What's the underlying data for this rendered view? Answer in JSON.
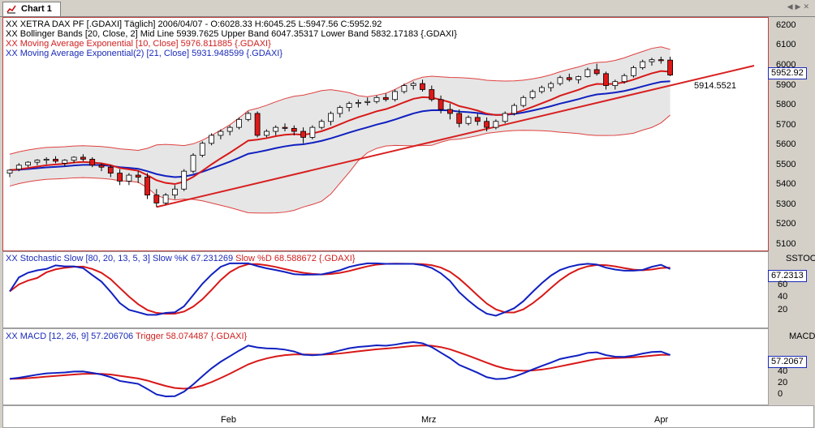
{
  "tab": {
    "label": "Chart 1"
  },
  "price_panel": {
    "title": "XETRA DAX PF [.GDAXI]  Täglich] 2006/04/07 - O:6028.33 H:6045.25 L:5947.56 C:5952.92",
    "bollinger": "Bollinger Bands [20, Close, 2] Mid Line 5939.7625 Upper Band 6047.35317 Lower Band 5832.17183 {.GDAXI}",
    "ema10": "Moving Average Exponential [10, Close] 5976.811885 {.GDAXI}",
    "ema21": "Moving Average Exponential(2) [21, Close] 5931.948599 {.GDAXI}",
    "prefix": "XX",
    "last_value": "5952.92",
    "trendline_value": "5914.5521",
    "y_ticks": [
      "6200",
      "6100",
      "6000",
      "5900",
      "5800",
      "5700",
      "5600",
      "5500",
      "5400",
      "5300",
      "5200",
      "5100"
    ]
  },
  "stoch_panel": {
    "prefix": "XX",
    "label_blue": "Stochastic Slow [80, 20, 13, 5, 3] Slow %K 67.231269",
    "label_red": "Slow %D 68.588672 {.GDAXI}",
    "name": "SSTOC",
    "value": "67.2313",
    "y_ticks": [
      "60",
      "40",
      "20"
    ]
  },
  "macd_panel": {
    "prefix": "XX",
    "label_blue": "MACD [12, 26, 9] 57.206706",
    "label_red": "Trigger 58.074487 {.GDAXI}",
    "name": "MACD",
    "value": "57.2067",
    "y_ticks": [
      "40",
      "20",
      "0"
    ]
  },
  "x_axis": {
    "labels": [
      "Feb",
      "Mrz",
      "Apr"
    ]
  },
  "colors": {
    "up": "#ffffff",
    "down": "#e01818",
    "ema10": "#d81818",
    "ema21": "#1020c0",
    "band": "#e6e6e6",
    "band_line": "#e04040",
    "trend": "#d82020"
  },
  "chart_data": {
    "type": "candlestick",
    "title": "XETRA DAX PF [.GDAXI]",
    "ylim": [
      5100,
      6220
    ],
    "candles": [
      [
        5460,
        5480,
        5440,
        5475
      ],
      [
        5480,
        5510,
        5470,
        5500
      ],
      [
        5500,
        5520,
        5490,
        5515
      ],
      [
        5515,
        5530,
        5500,
        5525
      ],
      [
        5525,
        5540,
        5505,
        5530
      ],
      [
        5530,
        5545,
        5510,
        5520
      ],
      [
        5510,
        5530,
        5495,
        5525
      ],
      [
        5525,
        5545,
        5510,
        5540
      ],
      [
        5540,
        5555,
        5520,
        5530
      ],
      [
        5530,
        5540,
        5490,
        5500
      ],
      [
        5500,
        5510,
        5470,
        5490
      ],
      [
        5490,
        5500,
        5440,
        5460
      ],
      [
        5460,
        5480,
        5400,
        5420
      ],
      [
        5420,
        5460,
        5400,
        5450
      ],
      [
        5450,
        5470,
        5410,
        5440
      ],
      [
        5440,
        5460,
        5330,
        5350
      ],
      [
        5350,
        5380,
        5290,
        5310
      ],
      [
        5310,
        5360,
        5300,
        5350
      ],
      [
        5350,
        5400,
        5330,
        5380
      ],
      [
        5380,
        5480,
        5370,
        5470
      ],
      [
        5470,
        5560,
        5460,
        5550
      ],
      [
        5550,
        5620,
        5540,
        5610
      ],
      [
        5610,
        5660,
        5600,
        5650
      ],
      [
        5650,
        5680,
        5630,
        5670
      ],
      [
        5670,
        5700,
        5650,
        5690
      ],
      [
        5690,
        5740,
        5680,
        5730
      ],
      [
        5730,
        5770,
        5720,
        5760
      ],
      [
        5760,
        5770,
        5640,
        5650
      ],
      [
        5650,
        5680,
        5640,
        5670
      ],
      [
        5670,
        5700,
        5650,
        5690
      ],
      [
        5690,
        5710,
        5670,
        5685
      ],
      [
        5685,
        5700,
        5650,
        5670
      ],
      [
        5670,
        5690,
        5610,
        5640
      ],
      [
        5640,
        5700,
        5630,
        5690
      ],
      [
        5690,
        5730,
        5680,
        5720
      ],
      [
        5720,
        5770,
        5700,
        5760
      ],
      [
        5760,
        5800,
        5740,
        5790
      ],
      [
        5790,
        5820,
        5770,
        5810
      ],
      [
        5810,
        5830,
        5790,
        5815
      ],
      [
        5815,
        5840,
        5800,
        5820
      ],
      [
        5820,
        5850,
        5810,
        5840
      ],
      [
        5840,
        5860,
        5820,
        5830
      ],
      [
        5830,
        5880,
        5820,
        5870
      ],
      [
        5870,
        5910,
        5860,
        5900
      ],
      [
        5900,
        5920,
        5880,
        5910
      ],
      [
        5910,
        5930,
        5870,
        5880
      ],
      [
        5880,
        5900,
        5820,
        5830
      ],
      [
        5830,
        5850,
        5760,
        5780
      ],
      [
        5780,
        5810,
        5730,
        5760
      ],
      [
        5760,
        5780,
        5690,
        5710
      ],
      [
        5710,
        5750,
        5700,
        5740
      ],
      [
        5740,
        5760,
        5700,
        5720
      ],
      [
        5720,
        5740,
        5670,
        5690
      ],
      [
        5690,
        5730,
        5680,
        5720
      ],
      [
        5720,
        5770,
        5710,
        5760
      ],
      [
        5760,
        5810,
        5750,
        5800
      ],
      [
        5800,
        5850,
        5790,
        5840
      ],
      [
        5840,
        5880,
        5830,
        5870
      ],
      [
        5870,
        5900,
        5860,
        5890
      ],
      [
        5890,
        5920,
        5870,
        5910
      ],
      [
        5910,
        5950,
        5900,
        5940
      ],
      [
        5940,
        5960,
        5920,
        5930
      ],
      [
        5930,
        5950,
        5910,
        5945
      ],
      [
        5945,
        5990,
        5940,
        5980
      ],
      [
        5980,
        6010,
        5950,
        5960
      ],
      [
        5960,
        5970,
        5880,
        5900
      ],
      [
        5900,
        5930,
        5880,
        5920
      ],
      [
        5920,
        5960,
        5910,
        5950
      ],
      [
        5950,
        6000,
        5940,
        5990
      ],
      [
        5990,
        6030,
        5980,
        6020
      ],
      [
        6020,
        6040,
        6000,
        6030
      ],
      [
        6030,
        6045,
        6010,
        6025
      ],
      [
        6028,
        6045,
        5948,
        5953
      ]
    ],
    "x_ticks": [
      "Feb",
      "Mrz",
      "Apr"
    ]
  }
}
